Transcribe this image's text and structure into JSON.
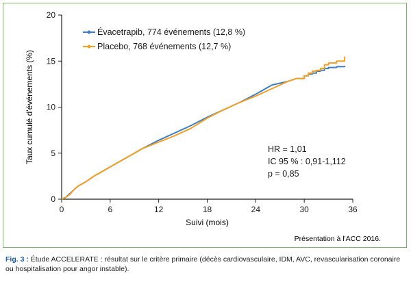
{
  "chart_data": {
    "type": "line",
    "xlabel": "Suivi (mois)",
    "ylabel": "Taux cumulé d'événements (%)",
    "xlim": [
      0,
      36
    ],
    "ylim": [
      0,
      20
    ],
    "xticks": [
      "0",
      "6",
      "12",
      "18",
      "24",
      "30",
      "36"
    ],
    "yticks": [
      "0",
      "5",
      "10",
      "15",
      "20"
    ],
    "grid": false,
    "legend_position": "top-left",
    "colors": {
      "evacetrapib": "#3f7fbf",
      "placebo": "#f0a12a",
      "axis": "#1a1a1a"
    },
    "series": [
      {
        "name": "Évacetrapib, 774 événements (12,8 %)",
        "color": "#3f7fbf",
        "x": [
          0,
          0.5,
          1,
          1.5,
          2,
          3,
          4,
          6,
          8,
          10,
          12,
          14,
          16,
          18,
          20,
          22,
          24,
          25,
          26,
          27,
          28,
          29,
          30,
          30.5,
          31,
          31.5,
          32,
          32.5,
          33,
          34,
          35
        ],
        "y": [
          0,
          0.2,
          0.6,
          1.0,
          1.4,
          1.9,
          2.5,
          3.5,
          4.5,
          5.5,
          6.4,
          7.2,
          8.0,
          8.9,
          9.7,
          10.5,
          11.4,
          11.9,
          12.4,
          12.6,
          12.8,
          13.1,
          13.4,
          13.6,
          13.7,
          13.9,
          14.0,
          14.2,
          14.3,
          14.4,
          14.5
        ]
      },
      {
        "name": "Placebo, 768 événements (12,7 %)",
        "color": "#f0a12a",
        "x": [
          0,
          0.5,
          1,
          1.5,
          2,
          3,
          4,
          6,
          8,
          10,
          12,
          14,
          16,
          18,
          20,
          22,
          24,
          25,
          26,
          27,
          28,
          29,
          30,
          30.5,
          31,
          31.5,
          32,
          32.5,
          33,
          34,
          35
        ],
        "y": [
          0,
          0.2,
          0.5,
          1.0,
          1.4,
          1.9,
          2.5,
          3.5,
          4.5,
          5.5,
          6.2,
          6.9,
          7.7,
          8.8,
          9.7,
          10.5,
          11.2,
          11.6,
          12.0,
          12.4,
          12.8,
          13.1,
          13.4,
          13.7,
          13.9,
          14.0,
          14.2,
          14.6,
          14.8,
          15.0,
          15.5
        ]
      }
    ],
    "annotations": [
      "HR = 1,01",
      "IC 95 % : 0,91-1,112",
      "p = 0,85"
    ],
    "source": "Présentation à l'ACC 2016."
  },
  "caption": {
    "label": "Fig. 3 :",
    "text": " Étude ACCELERATE : résultat sur le critère primaire (décès cardiovasculaire, IDM, AVC, revascularisation coronaire ou hospitalisation pour angor instable)."
  }
}
